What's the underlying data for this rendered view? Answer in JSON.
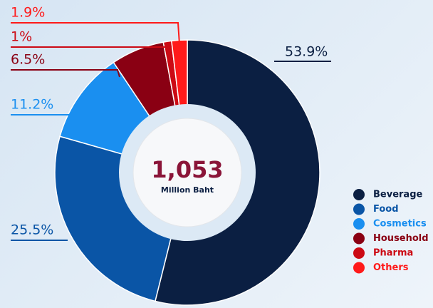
{
  "chart_data": {
    "type": "donut",
    "categories": [
      "Beverage",
      "Food",
      "Cosmetics",
      "Household",
      "Pharma",
      "Others"
    ],
    "values": [
      53.9,
      25.5,
      11.2,
      6.5,
      1,
      1.9
    ],
    "value_labels": [
      "53.9%",
      "25.5%",
      "11.2%",
      "6.5%",
      "1%",
      "1.9%"
    ],
    "colors": [
      "#0b1f42",
      "#0a55a6",
      "#1a8ff0",
      "#8a0013",
      "#cc0a14",
      "#ff1a1a"
    ],
    "center_text": "1,053",
    "center_subtext": "Million Baht",
    "legend": "right-bottom"
  }
}
